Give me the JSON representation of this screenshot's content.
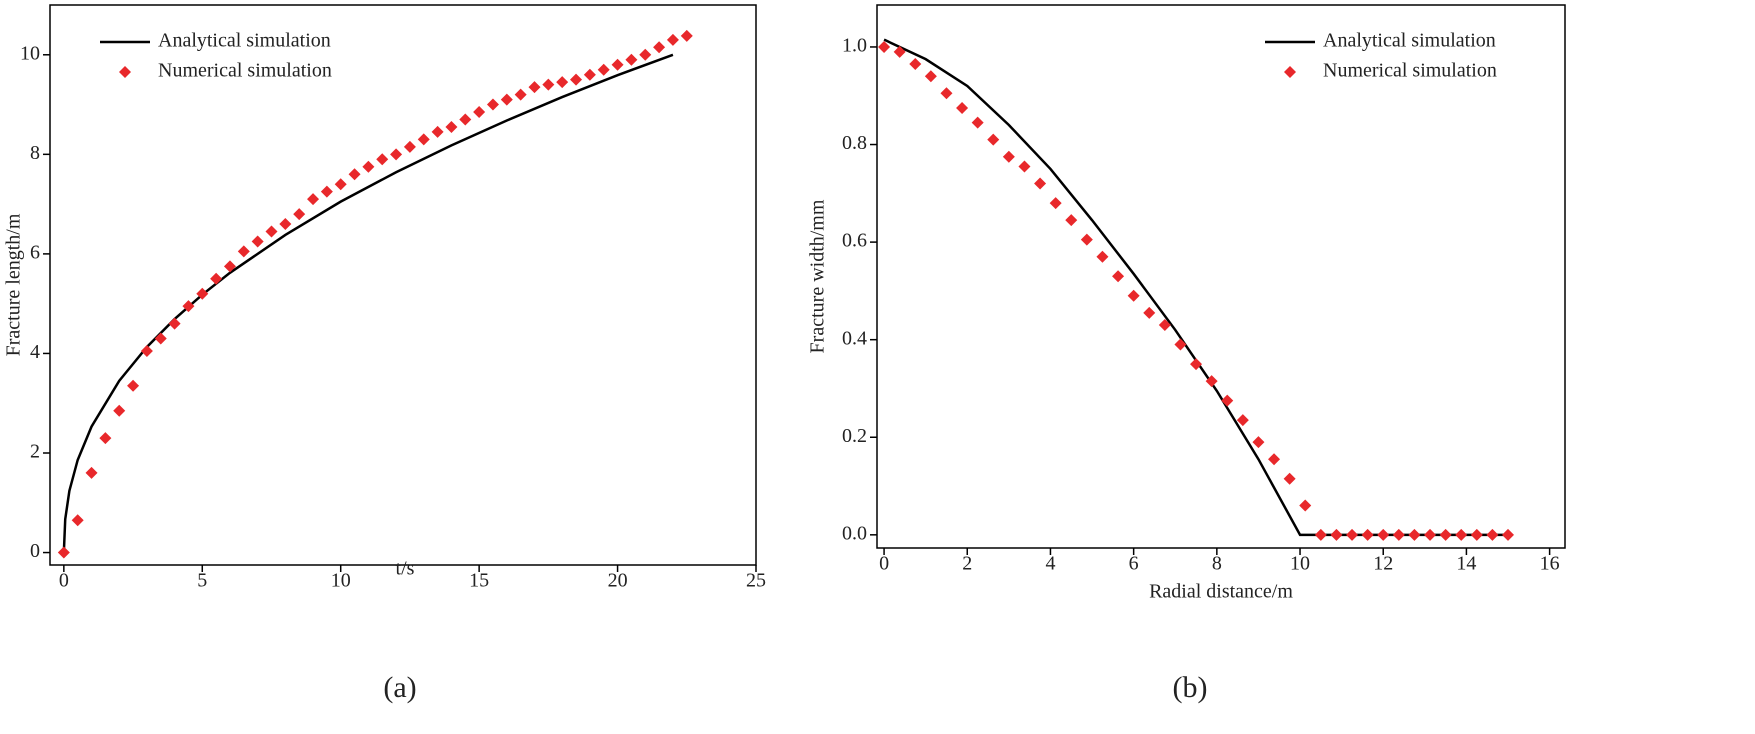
{
  "chart_data": [
    {
      "type": "line",
      "panel": "(a)",
      "x_label": "t/s",
      "y_label": "Fracture length/m",
      "xlim": [
        -0.5,
        25
      ],
      "ylim": [
        -0.25,
        11
      ],
      "xticks": [
        0,
        5,
        10,
        15,
        20,
        25
      ],
      "yticks": [
        0,
        2,
        4,
        6,
        8,
        10
      ],
      "legend": "upper left",
      "series": [
        {
          "name": "Analytical simulation",
          "type": "line",
          "color": "#000000",
          "x": [
            0,
            0.05,
            0.2,
            0.5,
            1,
            2,
            3,
            4,
            5,
            6,
            8,
            10,
            12,
            14,
            16,
            18,
            20,
            22
          ],
          "values": [
            0,
            0.67,
            1.24,
            1.86,
            2.53,
            3.45,
            4.13,
            4.69,
            5.18,
            5.62,
            6.38,
            7.05,
            7.64,
            8.18,
            8.68,
            9.15,
            9.59,
            10
          ]
        },
        {
          "name": "Numerical simulation",
          "type": "scatter",
          "color": "#e8282b",
          "x": [
            0,
            0.5,
            1,
            1.5,
            2,
            2.5,
            3,
            3.5,
            4,
            4.5,
            5,
            5.5,
            6,
            6.5,
            7,
            7.5,
            8,
            8.5,
            9,
            9.5,
            10,
            10.5,
            11,
            11.5,
            12,
            12.5,
            13,
            13.5,
            14,
            14.5,
            15,
            15.5,
            16,
            16.5,
            17,
            17.5,
            18,
            18.5,
            19,
            19.5,
            20,
            20.5,
            21,
            21.5,
            22,
            22.5
          ],
          "values": [
            0,
            0.65,
            1.6,
            2.3,
            2.85,
            3.35,
            4.05,
            4.3,
            4.6,
            4.95,
            5.2,
            5.5,
            5.75,
            6.05,
            6.25,
            6.45,
            6.6,
            6.8,
            7.1,
            7.25,
            7.4,
            7.6,
            7.75,
            7.9,
            8.0,
            8.15,
            8.3,
            8.45,
            8.55,
            8.7,
            8.85,
            9.0,
            9.1,
            9.2,
            9.35,
            9.4,
            9.45,
            9.5,
            9.6,
            9.7,
            9.8,
            9.9,
            10.0,
            10.15,
            10.3,
            10.38
          ]
        }
      ]
    },
    {
      "type": "line",
      "panel": "(b)",
      "x_label": "Radial distance/m",
      "y_label": "Fracture width/mm",
      "xlim": [
        -0.17,
        16.37
      ],
      "ylim": [
        -0.027,
        1.086
      ],
      "xticks": [
        0,
        2,
        4,
        6,
        8,
        10,
        12,
        14,
        16
      ],
      "yticks": [
        {
          "value": 0,
          "label": "0.0"
        },
        0.2,
        0.4,
        0.6,
        0.8,
        {
          "value": 1,
          "label": "1.0"
        }
      ],
      "legend": "upper right",
      "series": [
        {
          "name": "Analytical simulation",
          "type": "line",
          "color": "#000000",
          "x": [
            0,
            1,
            2,
            3,
            4,
            5,
            6,
            7,
            8,
            9,
            10,
            15
          ],
          "values": [
            1.015,
            0.975,
            0.92,
            0.84,
            0.75,
            0.645,
            0.535,
            0.42,
            0.295,
            0.155,
            0,
            0
          ]
        },
        {
          "name": "Numerical simulation",
          "type": "scatter",
          "color": "#e8282b",
          "x": [
            0,
            0.375,
            0.75,
            1.125,
            1.5,
            1.875,
            2.25,
            2.625,
            3,
            3.375,
            3.75,
            4.125,
            4.5,
            4.875,
            5.25,
            5.625,
            6,
            6.375,
            6.75,
            7.125,
            7.5,
            7.875,
            8.25,
            8.625,
            9,
            9.375,
            9.75,
            10.125,
            10.5,
            10.875,
            11.25,
            11.625,
            12,
            12.375,
            12.75,
            13.125,
            13.5,
            13.875,
            14.25,
            14.625,
            15
          ],
          "values": [
            1.0,
            0.99,
            0.965,
            0.94,
            0.905,
            0.875,
            0.845,
            0.81,
            0.775,
            0.755,
            0.72,
            0.68,
            0.645,
            0.605,
            0.57,
            0.53,
            0.49,
            0.455,
            0.43,
            0.39,
            0.35,
            0.315,
            0.275,
            0.235,
            0.19,
            0.155,
            0.115,
            0.06,
            0,
            0,
            0,
            0,
            0,
            0,
            0,
            0,
            0,
            0,
            0,
            0,
            0
          ]
        }
      ]
    }
  ]
}
